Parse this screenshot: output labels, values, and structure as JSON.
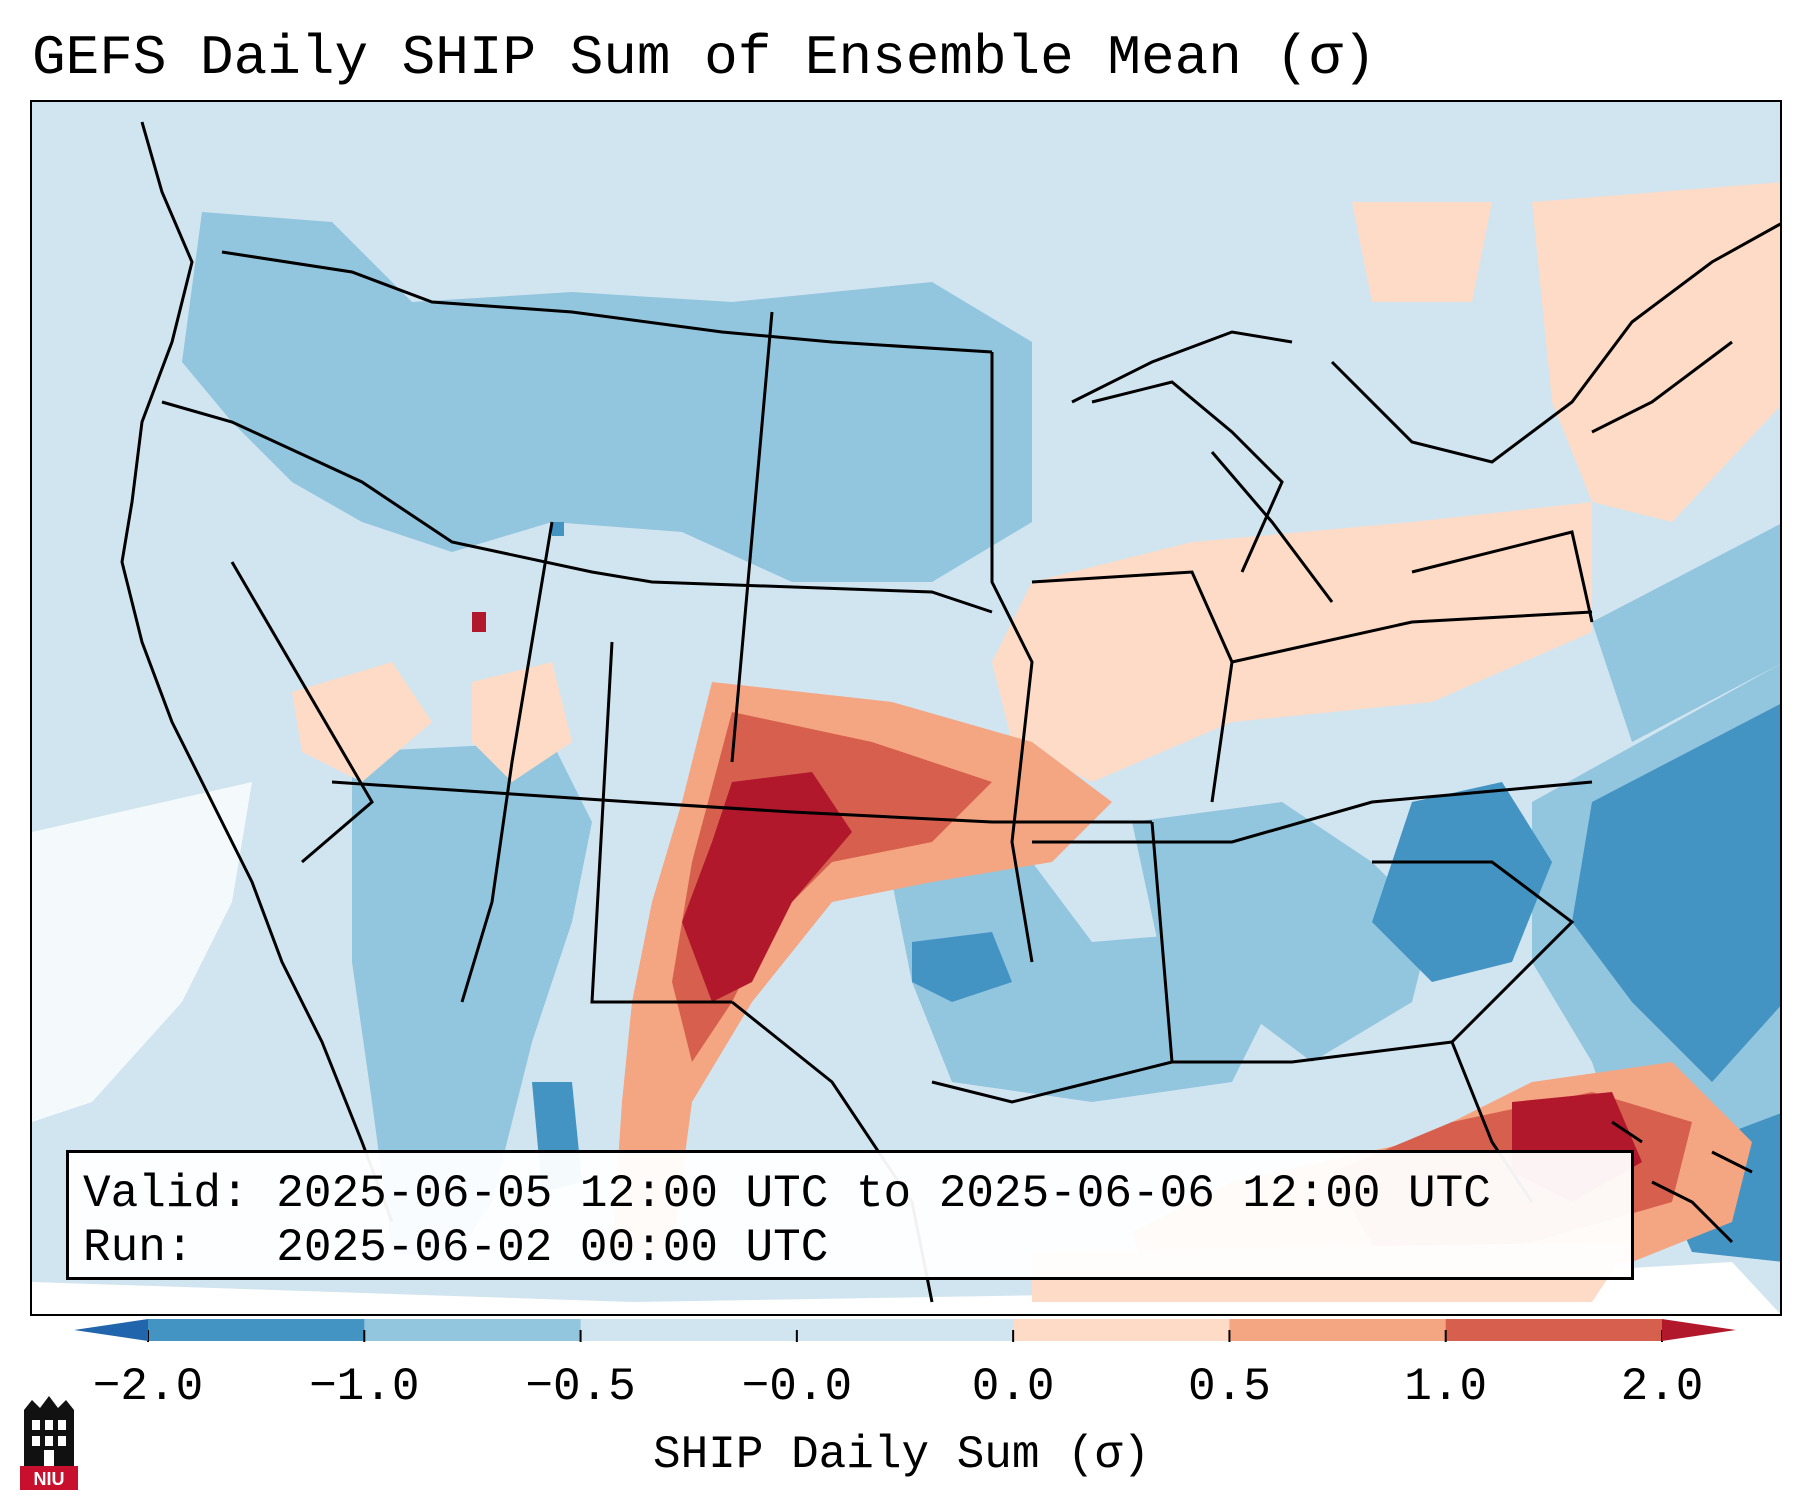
{
  "title": "GEFS Daily SHIP Sum of Ensemble Mean (σ)",
  "info": {
    "valid_label": "Valid:",
    "valid_value": "2025-06-05 12:00 UTC to 2025-06-06 12:00 UTC",
    "run_label": "Run:",
    "run_value": "2025-06-02 00:00 UTC"
  },
  "colorbar": {
    "label": "SHIP Daily Sum (σ)",
    "ticks": [
      "−2.0",
      "−1.0",
      "−0.5",
      "−0.0",
      "0.0",
      "0.5",
      "1.0",
      "2.0"
    ],
    "colors": [
      "#4393c3",
      "#92c5de",
      "#d1e5f0",
      "#d1e5f0",
      "#fddbc7",
      "#f4a582",
      "#d6604d",
      "#b2182b"
    ],
    "under_color": "#2166ac",
    "over_color": "#b2182b"
  },
  "logo": {
    "text": "NIU",
    "icon": "niu-logo-icon"
  }
}
